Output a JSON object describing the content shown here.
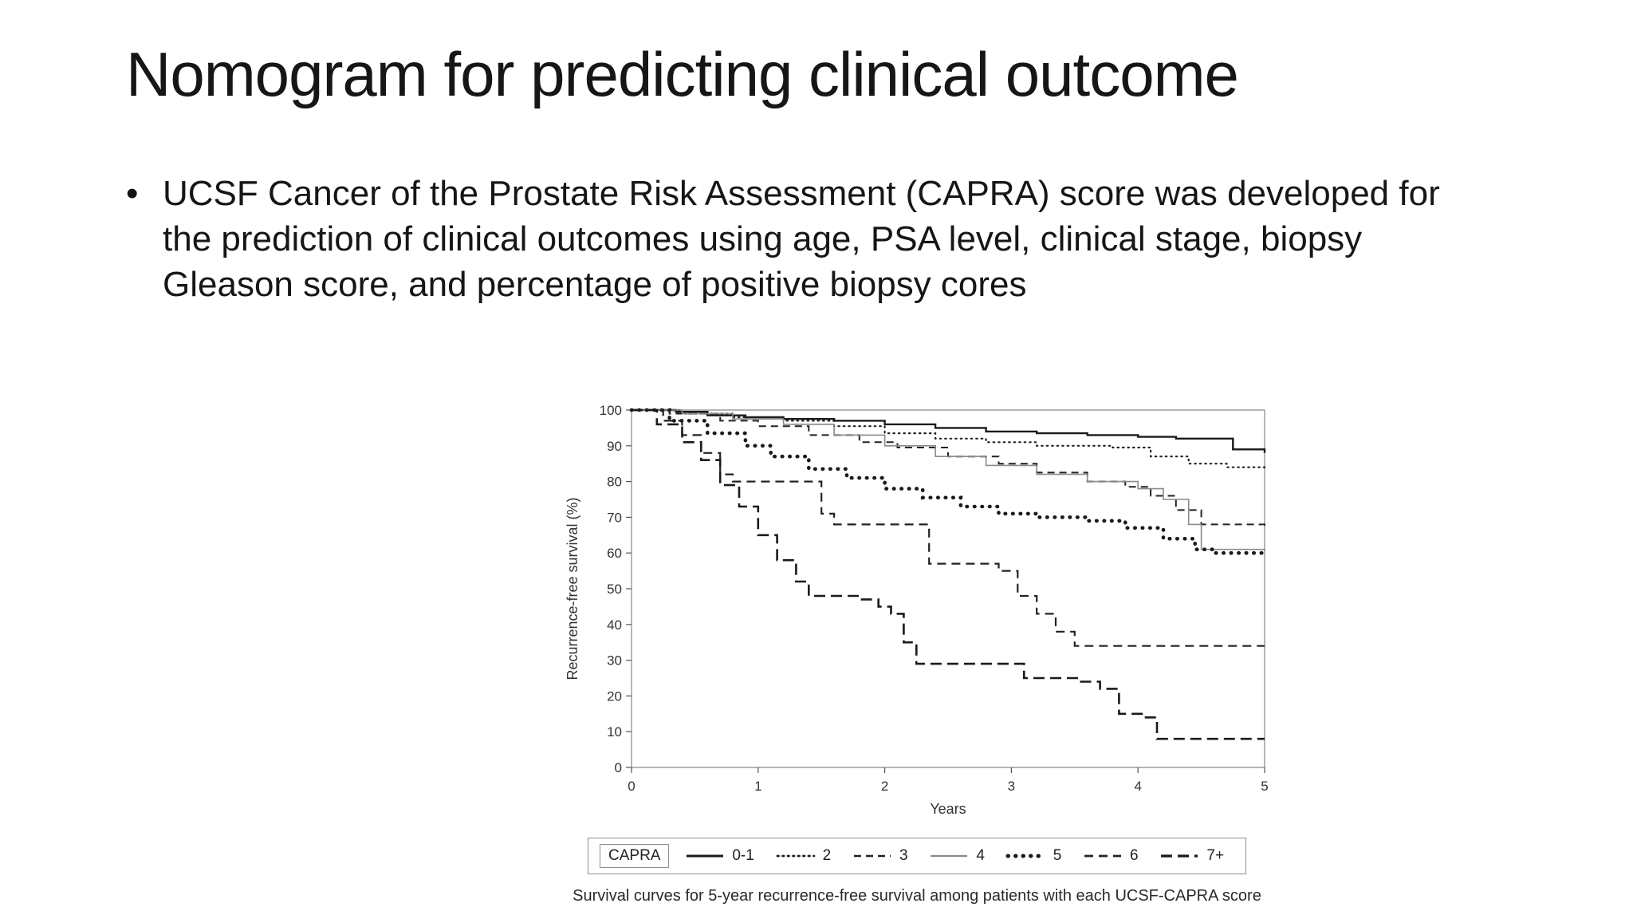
{
  "slide": {
    "title": "Nomogram for predicting clinical outcome",
    "bullet_marker": "•",
    "bullet_text": "UCSF Cancer of the Prostate Risk Assessment (CAPRA) score was developed for the prediction of clinical outcomes using age, PSA level, clinical stage, biopsy Gleason score, and percentage of positive biopsy cores"
  },
  "chart_data": {
    "type": "line",
    "subtype": "kaplan-meier-step",
    "title": "",
    "xlabel": "Years",
    "ylabel": "Recurrence-free survival (%)",
    "xlim": [
      0,
      5
    ],
    "ylim": [
      0,
      100
    ],
    "xticks": [
      0,
      1,
      2,
      3,
      4,
      5
    ],
    "yticks": [
      0,
      10,
      20,
      30,
      40,
      50,
      60,
      70,
      80,
      90,
      100
    ],
    "grid": false,
    "legend_title": "CAPRA",
    "legend_position": "bottom-box",
    "caption": "Survival curves for 5-year recurrence-free survival among patients with each UCSF-CAPRA score",
    "series": [
      {
        "name": "0-1",
        "line": {
          "dash": "",
          "width": 2.4,
          "color": "#1a1a1a",
          "cap": "butt"
        },
        "points": [
          [
            0,
            100
          ],
          [
            0.35,
            99.5
          ],
          [
            0.6,
            98.5
          ],
          [
            0.9,
            98
          ],
          [
            1.2,
            97.5
          ],
          [
            1.6,
            97
          ],
          [
            2,
            96
          ],
          [
            2.4,
            95
          ],
          [
            2.8,
            94
          ],
          [
            3.2,
            93.5
          ],
          [
            3.6,
            93
          ],
          [
            4,
            92.5
          ],
          [
            4.3,
            92
          ],
          [
            4.75,
            89
          ],
          [
            5,
            88
          ]
        ]
      },
      {
        "name": "2",
        "line": {
          "dash": "1.5 5",
          "width": 2.2,
          "color": "#222222",
          "cap": "round"
        },
        "points": [
          [
            0,
            100
          ],
          [
            0.4,
            99
          ],
          [
            0.8,
            98
          ],
          [
            1.2,
            97
          ],
          [
            1.6,
            95.5
          ],
          [
            2,
            93.5
          ],
          [
            2.4,
            92
          ],
          [
            2.8,
            91
          ],
          [
            3.2,
            90
          ],
          [
            3.8,
            89.5
          ],
          [
            4.1,
            87
          ],
          [
            4.4,
            85
          ],
          [
            4.7,
            84
          ],
          [
            5,
            83
          ]
        ]
      },
      {
        "name": "3",
        "line": {
          "dash": "9 6",
          "width": 2,
          "color": "#222222",
          "cap": "butt"
        },
        "points": [
          [
            0,
            100
          ],
          [
            0.3,
            99
          ],
          [
            0.7,
            97
          ],
          [
            1,
            95.5
          ],
          [
            1.4,
            93
          ],
          [
            1.8,
            91
          ],
          [
            2.1,
            89.5
          ],
          [
            2.5,
            87
          ],
          [
            2.9,
            85
          ],
          [
            3.2,
            82.5
          ],
          [
            3.6,
            80
          ],
          [
            3.9,
            78.5
          ],
          [
            4.1,
            76
          ],
          [
            4.3,
            72
          ],
          [
            4.5,
            68
          ],
          [
            5,
            67
          ]
        ]
      },
      {
        "name": "4",
        "line": {
          "dash": "",
          "width": 1.6,
          "color": "#8a8a8a",
          "cap": "butt"
        },
        "points": [
          [
            0,
            100
          ],
          [
            0.4,
            99
          ],
          [
            0.8,
            97.5
          ],
          [
            1.2,
            96
          ],
          [
            1.6,
            93
          ],
          [
            2,
            90
          ],
          [
            2.4,
            87
          ],
          [
            2.8,
            84.5
          ],
          [
            3.2,
            82
          ],
          [
            3.6,
            80
          ],
          [
            4,
            78
          ],
          [
            4.2,
            75
          ],
          [
            4.4,
            68
          ],
          [
            4.5,
            61
          ],
          [
            5,
            60.5
          ]
        ]
      },
      {
        "name": "5",
        "line": {
          "dash": "0.5 9",
          "width": 4.6,
          "color": "#1a1a1a",
          "cap": "round"
        },
        "points": [
          [
            0,
            100
          ],
          [
            0.3,
            97
          ],
          [
            0.6,
            93.5
          ],
          [
            0.9,
            90
          ],
          [
            1.1,
            87
          ],
          [
            1.4,
            83.5
          ],
          [
            1.7,
            81
          ],
          [
            2,
            78
          ],
          [
            2.3,
            75.5
          ],
          [
            2.6,
            73
          ],
          [
            2.9,
            71
          ],
          [
            3.2,
            70
          ],
          [
            3.6,
            69
          ],
          [
            3.9,
            67
          ],
          [
            4.2,
            64
          ],
          [
            4.45,
            61
          ],
          [
            4.6,
            60
          ],
          [
            5,
            60
          ]
        ]
      },
      {
        "name": "6",
        "line": {
          "dash": "11 7",
          "width": 2.2,
          "color": "#222222",
          "cap": "butt"
        },
        "points": [
          [
            0,
            100
          ],
          [
            0.25,
            97
          ],
          [
            0.4,
            93
          ],
          [
            0.55,
            88
          ],
          [
            0.7,
            82
          ],
          [
            0.8,
            80
          ],
          [
            1.35,
            80
          ],
          [
            1.5,
            71
          ],
          [
            1.6,
            68
          ],
          [
            2.2,
            68
          ],
          [
            2.35,
            57
          ],
          [
            2.9,
            55
          ],
          [
            3.05,
            48
          ],
          [
            3.2,
            43
          ],
          [
            3.35,
            38
          ],
          [
            3.5,
            34
          ],
          [
            5,
            34
          ]
        ]
      },
      {
        "name": "7+",
        "line": {
          "dash": "14 7",
          "width": 2.6,
          "color": "#1a1a1a",
          "cap": "butt"
        },
        "points": [
          [
            0,
            100
          ],
          [
            0.2,
            96
          ],
          [
            0.4,
            91
          ],
          [
            0.55,
            86
          ],
          [
            0.7,
            79
          ],
          [
            0.85,
            73
          ],
          [
            1,
            65
          ],
          [
            1.15,
            58
          ],
          [
            1.3,
            52
          ],
          [
            1.4,
            48
          ],
          [
            1.8,
            47
          ],
          [
            1.95,
            45
          ],
          [
            2.05,
            43
          ],
          [
            2.15,
            35
          ],
          [
            2.25,
            29
          ],
          [
            3,
            29
          ],
          [
            3.1,
            25
          ],
          [
            3.55,
            24
          ],
          [
            3.7,
            22
          ],
          [
            3.85,
            15
          ],
          [
            4.05,
            14
          ],
          [
            4.15,
            8
          ],
          [
            5,
            8
          ]
        ]
      }
    ]
  }
}
